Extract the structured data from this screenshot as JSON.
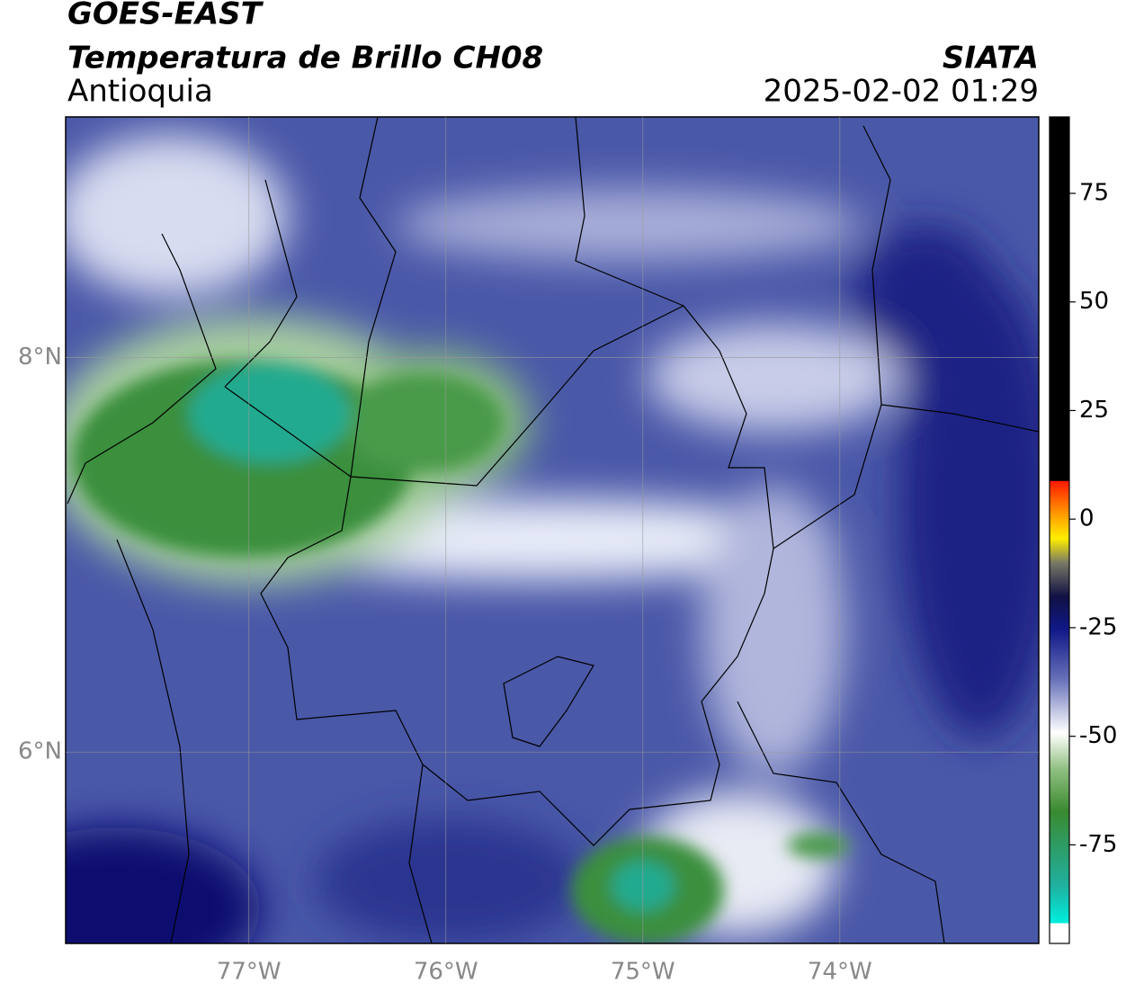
{
  "header": {
    "title": "GOES-EAST",
    "product": "Temperatura de Brillo CH08",
    "region": "Antioquia",
    "source": "SIATA",
    "datetime": "2025-02-02 01:29"
  },
  "map": {
    "xlim": [
      -77.93,
      -72.99
    ],
    "ylim": [
      5.03,
      9.22
    ],
    "grid": true,
    "xticks": [
      {
        "value": -77,
        "label": "77°W"
      },
      {
        "value": -76,
        "label": "76°W"
      },
      {
        "value": -75,
        "label": "75°W"
      },
      {
        "value": -74,
        "label": "74°W"
      }
    ],
    "yticks": [
      {
        "value": 8,
        "label": "8°N"
      },
      {
        "value": 6,
        "label": "6°N"
      }
    ]
  },
  "colorbar": {
    "lim": [
      -97.7,
      92.6
    ],
    "ticks": [
      75,
      50,
      25,
      0,
      -25,
      -50,
      -75
    ]
  }
}
